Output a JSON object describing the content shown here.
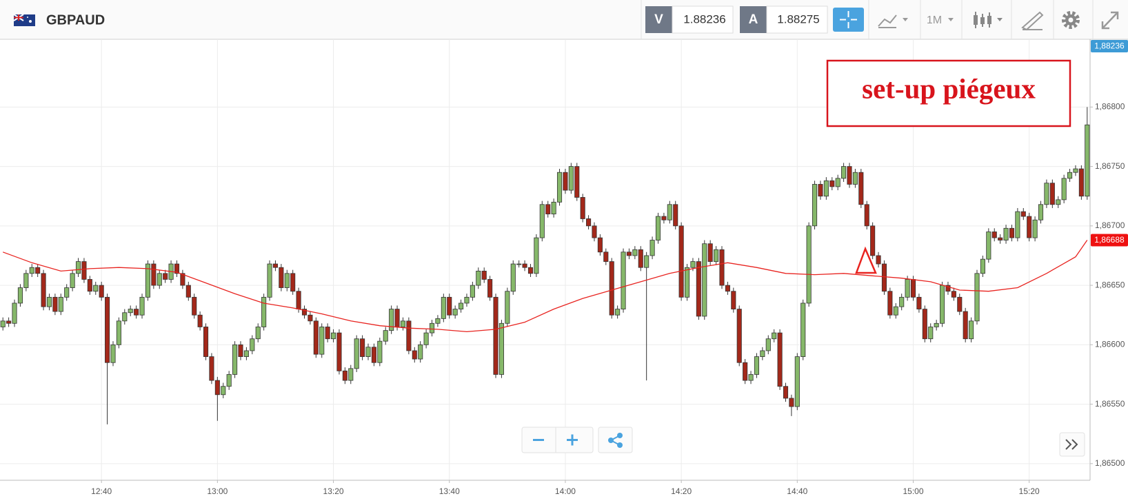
{
  "toolbar": {
    "symbol": "GBPAUD",
    "bid_label": "V",
    "bid": "1.88236",
    "ask_label": "A",
    "ask": "1.88275",
    "timeframe": "1M"
  },
  "chart_data": {
    "type": "candlestick",
    "annotation": "set-up piégeux",
    "up_color": "#86b86a",
    "down_color": "#a3281a",
    "x": [
      "12:23",
      "12:24",
      "12:25",
      "12:26",
      "12:27",
      "12:28",
      "12:29",
      "12:30",
      "12:31",
      "12:32",
      "12:33",
      "12:34",
      "12:35",
      "12:36",
      "12:37",
      "12:38",
      "12:39",
      "12:40",
      "12:41",
      "12:42",
      "12:43",
      "12:44",
      "12:45",
      "12:46",
      "12:47",
      "12:48",
      "12:49",
      "12:50",
      "12:51",
      "12:52",
      "12:53",
      "12:54",
      "12:55",
      "12:56",
      "12:57",
      "12:58",
      "12:59",
      "13:00",
      "13:01",
      "13:02",
      "13:03",
      "13:04",
      "13:05",
      "13:06",
      "13:07",
      "13:08",
      "13:09",
      "13:10",
      "13:11",
      "13:12",
      "13:13",
      "13:14",
      "13:15",
      "13:16",
      "13:17",
      "13:18",
      "13:19",
      "13:20",
      "13:21",
      "13:22",
      "13:23",
      "13:24",
      "13:25",
      "13:26",
      "13:27",
      "13:28",
      "13:29",
      "13:30",
      "13:31",
      "13:32",
      "13:33",
      "13:34",
      "13:35",
      "13:36",
      "13:37",
      "13:38",
      "13:39",
      "13:40",
      "13:41",
      "13:42",
      "13:43",
      "13:44",
      "13:45",
      "13:46",
      "13:47",
      "13:48",
      "13:49",
      "13:50",
      "13:51",
      "13:52",
      "13:53",
      "13:54",
      "13:55",
      "13:56",
      "13:57",
      "13:58",
      "13:59",
      "14:00",
      "14:01",
      "14:02",
      "14:03",
      "14:04",
      "14:05",
      "14:06",
      "14:07",
      "14:08",
      "14:09",
      "14:10",
      "14:11",
      "14:12",
      "14:13",
      "14:14",
      "14:15",
      "14:16",
      "14:17",
      "14:18",
      "14:19",
      "14:20",
      "14:21",
      "14:22",
      "14:23",
      "14:24",
      "14:25",
      "14:26",
      "14:27",
      "14:28",
      "14:29",
      "14:30",
      "14:31",
      "14:32",
      "14:33",
      "14:34",
      "14:35",
      "14:36",
      "14:37",
      "14:38",
      "14:39",
      "14:40",
      "14:41",
      "14:42",
      "14:43",
      "14:44",
      "14:45",
      "14:46",
      "14:47",
      "14:48",
      "14:49",
      "14:50",
      "14:51",
      "14:52",
      "14:53",
      "14:54",
      "14:55",
      "14:56",
      "14:57",
      "14:58",
      "14:59",
      "15:00",
      "15:01",
      "15:02",
      "15:03",
      "15:04",
      "15:05",
      "15:06",
      "15:07",
      "15:08",
      "15:09",
      "15:10",
      "15:11",
      "15:12",
      "15:13",
      "15:14",
      "15:15",
      "15:16",
      "15:17",
      "15:18",
      "15:19",
      "15:20",
      "15:21",
      "15:22",
      "15:23",
      "15:24",
      "15:25",
      "15:26",
      "15:27",
      "15:28",
      "15:29",
      "15:30"
    ],
    "open": [
      1.86615,
      1.8662,
      1.86618,
      1.86635,
      1.86648,
      1.8666,
      1.86665,
      1.8666,
      1.86632,
      1.8664,
      1.86628,
      1.8664,
      1.86648,
      1.8666,
      1.8667,
      1.86655,
      1.86645,
      1.8665,
      1.8664,
      1.86585,
      1.866,
      1.8662,
      1.86627,
      1.8663,
      1.86625,
      1.8664,
      1.86668,
      1.8665,
      1.8666,
      1.86655,
      1.86668,
      1.8666,
      1.8665,
      1.8664,
      1.86625,
      1.86615,
      1.8659,
      1.8657,
      1.86558,
      1.86565,
      1.86575,
      1.866,
      1.8659,
      1.86595,
      1.86605,
      1.86615,
      1.8664,
      1.86668,
      1.86665,
      1.86648,
      1.8666,
      1.86645,
      1.8663,
      1.86625,
      1.8662,
      1.86592,
      1.86615,
      1.86605,
      1.8661,
      1.86578,
      1.8657,
      1.8658,
      1.86605,
      1.8659,
      1.86598,
      1.86585,
      1.86603,
      1.86612,
      1.8663,
      1.86615,
      1.8662,
      1.86595,
      1.86588,
      1.866,
      1.8661,
      1.86618,
      1.86622,
      1.8664,
      1.86625,
      1.8663,
      1.86635,
      1.8664,
      1.8665,
      1.86662,
      1.86655,
      1.8664,
      1.86575,
      1.86618,
      1.86645,
      1.86668,
      1.86668,
      1.86665,
      1.8666,
      1.8669,
      1.86718,
      1.8671,
      1.8672,
      1.86745,
      1.8673,
      1.8675,
      1.86724,
      1.86706,
      1.867,
      1.8669,
      1.86678,
      1.8667,
      1.86625,
      1.8663,
      1.86678,
      1.86675,
      1.8668,
      1.86665,
      1.86675,
      1.86688,
      1.86708,
      1.86705,
      1.86718,
      1.867,
      1.8664,
      1.86665,
      1.8667,
      1.86624,
      1.86685,
      1.8667,
      1.8668,
      1.8665,
      1.86645,
      1.8663,
      1.86585,
      1.8657,
      1.86575,
      1.8659,
      1.86595,
      1.86605,
      1.8661,
      1.86565,
      1.86555,
      1.86548,
      1.8659,
      1.86635,
      1.867,
      1.86735,
      1.86725,
      1.86738,
      1.86733,
      1.8674,
      1.8675,
      1.86735,
      1.86745,
      1.86718,
      1.867,
      1.86675,
      1.86668,
      1.86645,
      1.86625,
      1.86632,
      1.8664,
      1.86655,
      1.8664,
      1.8663,
      1.86605,
      1.86615,
      1.86618,
      1.8665,
      1.86645,
      1.8664,
      1.86628,
      1.86605,
      1.8662,
      1.8666,
      1.86672,
      1.86695,
      1.8669,
      1.86688,
      1.86698,
      1.8669,
      1.86712,
      1.86708,
      1.8669,
      1.86705,
      1.86718,
      1.86736,
      1.86718,
      1.86722,
      1.8674,
      1.86745,
      1.86748,
      1.86725
    ],
    "high": [
      1.86623,
      1.86623,
      1.86638,
      1.86651,
      1.86663,
      1.86668,
      1.86668,
      1.86663,
      1.86643,
      1.86643,
      1.86643,
      1.86651,
      1.86663,
      1.86673,
      1.86673,
      1.86658,
      1.86653,
      1.86653,
      1.86643,
      1.86603,
      1.86623,
      1.8663,
      1.86633,
      1.86633,
      1.86643,
      1.86671,
      1.86671,
      1.86663,
      1.86663,
      1.86671,
      1.86671,
      1.86663,
      1.86653,
      1.86643,
      1.86628,
      1.86618,
      1.86593,
      1.86573,
      1.86568,
      1.86578,
      1.86603,
      1.86603,
      1.86598,
      1.86608,
      1.86618,
      1.86643,
      1.86671,
      1.86671,
      1.86668,
      1.86663,
      1.86663,
      1.86648,
      1.86633,
      1.86628,
      1.86623,
      1.86618,
      1.86618,
      1.86613,
      1.86613,
      1.86581,
      1.86583,
      1.86608,
      1.86608,
      1.86601,
      1.86601,
      1.86606,
      1.86615,
      1.86633,
      1.86633,
      1.86623,
      1.86623,
      1.86598,
      1.86603,
      1.86613,
      1.86621,
      1.86625,
      1.86643,
      1.86643,
      1.86633,
      1.86638,
      1.86643,
      1.86653,
      1.86665,
      1.86665,
      1.86658,
      1.86643,
      1.86621,
      1.86648,
      1.86671,
      1.86671,
      1.86671,
      1.86668,
      1.86693,
      1.86721,
      1.86721,
      1.86723,
      1.86748,
      1.86748,
      1.86753,
      1.86753,
      1.86727,
      1.86709,
      1.86703,
      1.86693,
      1.86681,
      1.86673,
      1.86633,
      1.86681,
      1.86681,
      1.86683,
      1.86683,
      1.86678,
      1.86691,
      1.86711,
      1.86711,
      1.86721,
      1.86721,
      1.86703,
      1.86668,
      1.86673,
      1.86673,
      1.86688,
      1.86688,
      1.86683,
      1.86683,
      1.86653,
      1.86648,
      1.86633,
      1.86588,
      1.86578,
      1.86593,
      1.86598,
      1.86608,
      1.86613,
      1.86613,
      1.86568,
      1.86558,
      1.86593,
      1.86638,
      1.86703,
      1.86738,
      1.86738,
      1.86741,
      1.86741,
      1.86743,
      1.86753,
      1.86753,
      1.86748,
      1.86748,
      1.86721,
      1.86703,
      1.86678,
      1.86671,
      1.86648,
      1.86635,
      1.86643,
      1.86658,
      1.86658,
      1.86643,
      1.86633,
      1.86618,
      1.86621,
      1.86653,
      1.86653,
      1.86648,
      1.86643,
      1.86631,
      1.86623,
      1.86663,
      1.86675,
      1.86698,
      1.86698,
      1.86693,
      1.86701,
      1.86701,
      1.86715,
      1.86715,
      1.86711,
      1.86708,
      1.86721,
      1.86739,
      1.86739,
      1.86725,
      1.86743,
      1.86748,
      1.86751,
      1.86751,
      1.868
    ],
    "low": [
      1.86612,
      1.86615,
      1.86615,
      1.86632,
      1.86645,
      1.86657,
      1.86657,
      1.86629,
      1.86629,
      1.86625,
      1.86625,
      1.86637,
      1.86645,
      1.86657,
      1.86652,
      1.86642,
      1.86642,
      1.86637,
      1.86533,
      1.86582,
      1.86597,
      1.86617,
      1.86624,
      1.86622,
      1.86622,
      1.86637,
      1.86647,
      1.86647,
      1.86652,
      1.86652,
      1.86657,
      1.86647,
      1.86637,
      1.86622,
      1.86612,
      1.86587,
      1.86567,
      1.86536,
      1.86555,
      1.86562,
      1.86572,
      1.86587,
      1.86587,
      1.86592,
      1.86602,
      1.86612,
      1.86637,
      1.86662,
      1.86645,
      1.86645,
      1.86642,
      1.86627,
      1.86622,
      1.86617,
      1.86589,
      1.86589,
      1.86602,
      1.86602,
      1.86575,
      1.86567,
      1.86567,
      1.86577,
      1.86587,
      1.86587,
      1.86582,
      1.86582,
      1.866,
      1.86609,
      1.86612,
      1.86612,
      1.86592,
      1.86585,
      1.86585,
      1.86597,
      1.86607,
      1.86615,
      1.86619,
      1.86622,
      1.86622,
      1.86627,
      1.86632,
      1.86637,
      1.86647,
      1.86652,
      1.86637,
      1.86572,
      1.86572,
      1.86615,
      1.86642,
      1.86665,
      1.86662,
      1.86657,
      1.86657,
      1.86687,
      1.86707,
      1.86707,
      1.86717,
      1.86727,
      1.86727,
      1.86721,
      1.86703,
      1.86697,
      1.86687,
      1.86675,
      1.86667,
      1.86622,
      1.86622,
      1.86627,
      1.86672,
      1.86672,
      1.86662,
      1.8657,
      1.86672,
      1.86685,
      1.86702,
      1.86702,
      1.86697,
      1.86637,
      1.86637,
      1.86662,
      1.86621,
      1.86621,
      1.86667,
      1.86667,
      1.86647,
      1.86642,
      1.86627,
      1.86582,
      1.86567,
      1.86567,
      1.86572,
      1.86587,
      1.86592,
      1.86602,
      1.86562,
      1.86552,
      1.8654,
      1.86545,
      1.86587,
      1.86632,
      1.86697,
      1.86722,
      1.86722,
      1.8673,
      1.8673,
      1.86737,
      1.86732,
      1.86732,
      1.86715,
      1.86697,
      1.86672,
      1.86665,
      1.86642,
      1.86622,
      1.86622,
      1.86629,
      1.86637,
      1.86637,
      1.86627,
      1.86602,
      1.86602,
      1.86612,
      1.86615,
      1.86642,
      1.86637,
      1.86625,
      1.86602,
      1.86602,
      1.86617,
      1.86657,
      1.86669,
      1.86687,
      1.86685,
      1.86685,
      1.86687,
      1.86687,
      1.86705,
      1.86687,
      1.86687,
      1.86702,
      1.86715,
      1.86715,
      1.86715,
      1.86719,
      1.86737,
      1.86742,
      1.86722,
      1.86722
    ],
    "close": [
      1.8662,
      1.86618,
      1.86635,
      1.86648,
      1.8666,
      1.86665,
      1.8666,
      1.86632,
      1.8664,
      1.86628,
      1.8664,
      1.86648,
      1.8666,
      1.8667,
      1.86655,
      1.86645,
      1.8665,
      1.8664,
      1.86585,
      1.866,
      1.8662,
      1.86627,
      1.8663,
      1.86625,
      1.8664,
      1.86668,
      1.8665,
      1.8666,
      1.86655,
      1.86668,
      1.8666,
      1.8665,
      1.8664,
      1.86625,
      1.86615,
      1.8659,
      1.8657,
      1.86558,
      1.86565,
      1.86575,
      1.866,
      1.8659,
      1.86595,
      1.86605,
      1.86615,
      1.8664,
      1.86668,
      1.86665,
      1.86648,
      1.8666,
      1.86645,
      1.8663,
      1.86625,
      1.8662,
      1.86592,
      1.86615,
      1.86605,
      1.8661,
      1.86578,
      1.8657,
      1.8658,
      1.86605,
      1.8659,
      1.86598,
      1.86585,
      1.86603,
      1.86612,
      1.8663,
      1.86615,
      1.8662,
      1.86595,
      1.86588,
      1.866,
      1.8661,
      1.86618,
      1.86622,
      1.8664,
      1.86625,
      1.8663,
      1.86635,
      1.8664,
      1.8665,
      1.86662,
      1.86655,
      1.8664,
      1.86575,
      1.86618,
      1.86645,
      1.86668,
      1.86668,
      1.86665,
      1.8666,
      1.8669,
      1.86718,
      1.8671,
      1.8672,
      1.86745,
      1.8673,
      1.8675,
      1.86724,
      1.86706,
      1.867,
      1.8669,
      1.86678,
      1.8667,
      1.86625,
      1.8663,
      1.86678,
      1.86675,
      1.8668,
      1.86665,
      1.86675,
      1.86688,
      1.86708,
      1.86705,
      1.86718,
      1.867,
      1.8664,
      1.86665,
      1.8667,
      1.86624,
      1.86685,
      1.8667,
      1.8668,
      1.8665,
      1.86645,
      1.8663,
      1.86585,
      1.8657,
      1.86575,
      1.8659,
      1.86595,
      1.86605,
      1.8661,
      1.86565,
      1.86555,
      1.86548,
      1.8659,
      1.86635,
      1.867,
      1.86735,
      1.86725,
      1.86738,
      1.86733,
      1.8674,
      1.8675,
      1.86735,
      1.86745,
      1.86718,
      1.867,
      1.86675,
      1.86668,
      1.86645,
      1.86625,
      1.86632,
      1.8664,
      1.86655,
      1.8664,
      1.8663,
      1.86605,
      1.86615,
      1.86618,
      1.8665,
      1.86645,
      1.8664,
      1.86628,
      1.86605,
      1.8662,
      1.8666,
      1.86672,
      1.86695,
      1.8669,
      1.86688,
      1.86698,
      1.8669,
      1.86712,
      1.86708,
      1.8669,
      1.86705,
      1.86718,
      1.86736,
      1.86718,
      1.86722,
      1.8674,
      1.86745,
      1.86748,
      1.86725,
      1.86785
    ],
    "moving_average": {
      "color": "#e8231f",
      "x": [
        "12:23",
        "12:28",
        "12:33",
        "12:38",
        "12:43",
        "12:48",
        "12:53",
        "12:58",
        "13:03",
        "13:08",
        "13:13",
        "13:18",
        "13:23",
        "13:28",
        "13:33",
        "13:38",
        "13:43",
        "13:48",
        "13:53",
        "13:58",
        "14:03",
        "14:08",
        "14:13",
        "14:18",
        "14:23",
        "14:28",
        "14:33",
        "14:38",
        "14:43",
        "14:48",
        "14:53",
        "14:58",
        "15:03",
        "15:08",
        "15:13",
        "15:18",
        "15:23",
        "15:28",
        "15:30"
      ],
      "values": [
        1.86678,
        1.86669,
        1.86662,
        1.86664,
        1.86665,
        1.86664,
        1.86661,
        1.86652,
        1.86643,
        1.86635,
        1.86631,
        1.86626,
        1.8662,
        1.86616,
        1.86614,
        1.86613,
        1.86611,
        1.86613,
        1.86619,
        1.8663,
        1.86639,
        1.86646,
        1.86653,
        1.8666,
        1.86665,
        1.86669,
        1.86665,
        1.8666,
        1.86659,
        1.8666,
        1.86658,
        1.86656,
        1.86653,
        1.86646,
        1.86645,
        1.86648,
        1.8666,
        1.86674,
        1.86688
      ]
    },
    "price_tags": [
      {
        "value": 1.88236,
        "label": "1,88236",
        "color": "#3d9bd6"
      },
      {
        "value": 1.86688,
        "label": "1,86688",
        "color": "#ee1111"
      }
    ],
    "ylim": [
      1.86486,
      1.86857
    ],
    "yticks": [
      {
        "value": 1.865,
        "label": "1,86500"
      },
      {
        "value": 1.8655,
        "label": "1,86550"
      },
      {
        "value": 1.866,
        "label": "1,86600"
      },
      {
        "value": 1.8665,
        "label": "1,86650"
      },
      {
        "value": 1.867,
        "label": "1,86700"
      },
      {
        "value": 1.8675,
        "label": "1,86750"
      },
      {
        "value": 1.868,
        "label": "1,86800"
      }
    ],
    "xticks": [
      "12:40",
      "13:00",
      "13:20",
      "13:40",
      "14:00",
      "14:20",
      "14:40",
      "15:00",
      "15:20"
    ],
    "grid": true
  }
}
